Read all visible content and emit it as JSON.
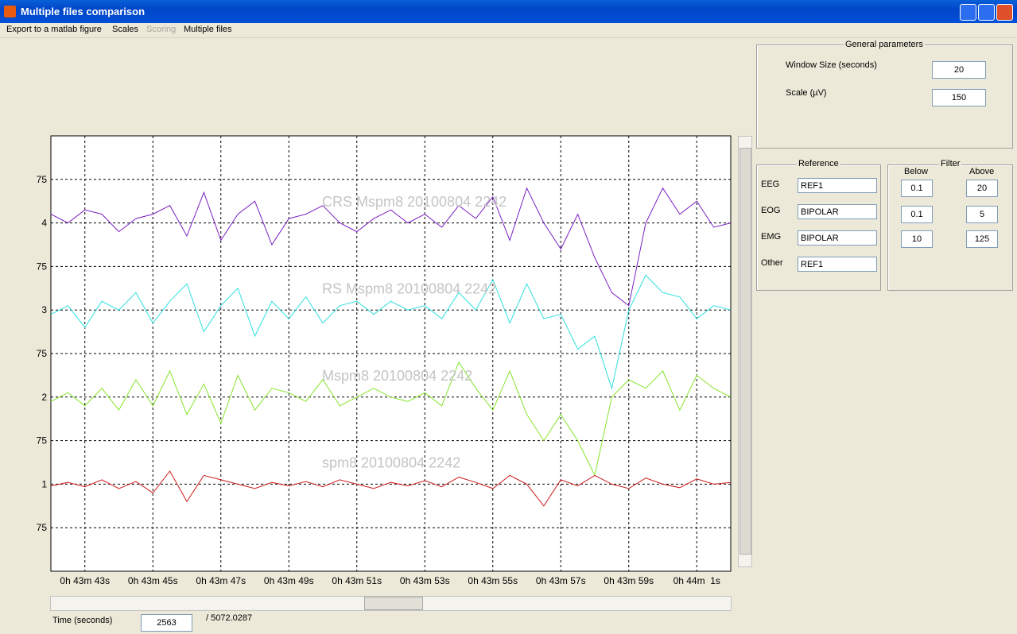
{
  "window": {
    "title": "Multiple files comparison"
  },
  "menu": [
    "Export to a matlab figure",
    "Scales",
    "Scoring",
    "Multiple files"
  ],
  "general": {
    "title": "General parameters",
    "window_label": "Window Size (seconds)",
    "window_value": "20",
    "scale_label": "Scale (µV)",
    "scale_value": "150"
  },
  "reference": {
    "title": "Reference",
    "rows": [
      [
        "EEG",
        "REF1"
      ],
      [
        "EOG",
        "BIPOLAR"
      ],
      [
        "EMG",
        "BIPOLAR"
      ],
      [
        "Other",
        "REF1"
      ]
    ]
  },
  "filter": {
    "title": "Filter",
    "below": "Below",
    "above": "Above",
    "rows": [
      [
        "0.1",
        "20"
      ],
      [
        "0.1",
        "5"
      ],
      [
        "10",
        "125"
      ]
    ]
  },
  "time": {
    "label": "Time (seconds)",
    "value": "2563",
    "total": "/ 5072.0287"
  },
  "chart_data": {
    "type": "line",
    "grid": true,
    "xlim": [
      2622,
      2642
    ],
    "ylim": [
      0,
      5
    ],
    "xticks": [
      {
        "value": 2623,
        "label": "0h 43m 43s"
      },
      {
        "value": 2625,
        "label": "0h 43m 45s"
      },
      {
        "value": 2627,
        "label": "0h 43m 47s"
      },
      {
        "value": 2629,
        "label": "0h 43m 49s"
      },
      {
        "value": 2631,
        "label": "0h 43m 51s"
      },
      {
        "value": 2633,
        "label": "0h 43m 53s"
      },
      {
        "value": 2635,
        "label": "0h 43m 55s"
      },
      {
        "value": 2637,
        "label": "0h 43m 57s"
      },
      {
        "value": 2639,
        "label": "0h 43m 59s"
      },
      {
        "value": 2641,
        "label": "0h 44m  1s"
      }
    ],
    "yticks": [
      {
        "value": 0.5,
        "label": "75"
      },
      1,
      {
        "value": 1.5,
        "label": "75"
      },
      2,
      {
        "value": 2.5,
        "label": "75"
      },
      3,
      {
        "value": 3.5,
        "label": "75"
      },
      4,
      {
        "value": 4.5,
        "label": "75"
      }
    ],
    "x": [
      2622,
      2622.5,
      2623,
      2623.5,
      2624,
      2624.5,
      2625,
      2625.5,
      2626,
      2626.5,
      2627,
      2627.5,
      2628,
      2628.5,
      2629,
      2629.5,
      2630,
      2630.5,
      2631,
      2631.5,
      2632,
      2632.5,
      2633,
      2633.5,
      2634,
      2634.5,
      2635,
      2635.5,
      2636,
      2636.5,
      2637,
      2637.5,
      2638,
      2638.5,
      2639,
      2639.5,
      2640,
      2640.5,
      2641,
      2641.5,
      2642
    ],
    "series": [
      {
        "name": "CRS Mspm8 20100804 2242",
        "color": "#7a1fc2",
        "values": [
          4.1,
          4.0,
          4.15,
          4.1,
          3.9,
          4.05,
          4.1,
          4.2,
          3.85,
          4.35,
          3.8,
          4.1,
          4.25,
          3.75,
          4.05,
          4.1,
          4.2,
          4.0,
          3.9,
          4.05,
          4.15,
          4.0,
          4.1,
          3.95,
          4.2,
          4.05,
          4.3,
          3.8,
          4.4,
          4.0,
          3.7,
          4.1,
          3.6,
          3.2,
          3.05,
          4.0,
          4.4,
          4.1,
          4.25,
          3.95,
          4.0
        ]
      },
      {
        "name": "RS Mspm8 20100804 2242",
        "color": "#2fdfe0",
        "values": [
          2.95,
          3.05,
          2.8,
          3.1,
          3.0,
          3.2,
          2.85,
          3.1,
          3.3,
          2.75,
          3.05,
          3.25,
          2.7,
          3.1,
          2.9,
          3.15,
          2.85,
          3.05,
          3.1,
          2.95,
          3.1,
          3.0,
          3.05,
          2.9,
          3.2,
          3.0,
          3.35,
          2.85,
          3.3,
          2.9,
          2.95,
          2.55,
          2.7,
          2.1,
          3.0,
          3.4,
          3.2,
          3.15,
          2.9,
          3.05,
          3.0
        ]
      },
      {
        "name": "Mspm8 20100804 2242",
        "color": "#86e52c",
        "values": [
          1.95,
          2.05,
          1.9,
          2.1,
          1.85,
          2.2,
          1.9,
          2.3,
          1.8,
          2.15,
          1.7,
          2.25,
          1.85,
          2.1,
          2.05,
          1.95,
          2.2,
          1.9,
          2.0,
          2.1,
          2.0,
          1.95,
          2.05,
          1.9,
          2.4,
          2.1,
          1.85,
          2.3,
          1.8,
          1.5,
          1.8,
          1.5,
          1.1,
          2.0,
          2.2,
          2.1,
          2.3,
          1.85,
          2.25,
          2.1,
          2.0
        ]
      },
      {
        "name": "spm8 20100804 2242",
        "color": "#cc1b1b",
        "values": [
          0.98,
          1.02,
          0.97,
          1.05,
          0.95,
          1.03,
          0.9,
          1.15,
          0.8,
          1.1,
          1.05,
          1.0,
          0.95,
          1.02,
          0.98,
          1.03,
          0.97,
          1.05,
          1.0,
          0.95,
          1.02,
          0.98,
          1.04,
          0.97,
          1.08,
          1.02,
          0.95,
          1.1,
          1.0,
          0.75,
          1.05,
          0.98,
          1.1,
          1.0,
          0.95,
          1.07,
          1.0,
          0.96,
          1.06,
          1.0,
          1.02
        ]
      }
    ]
  }
}
